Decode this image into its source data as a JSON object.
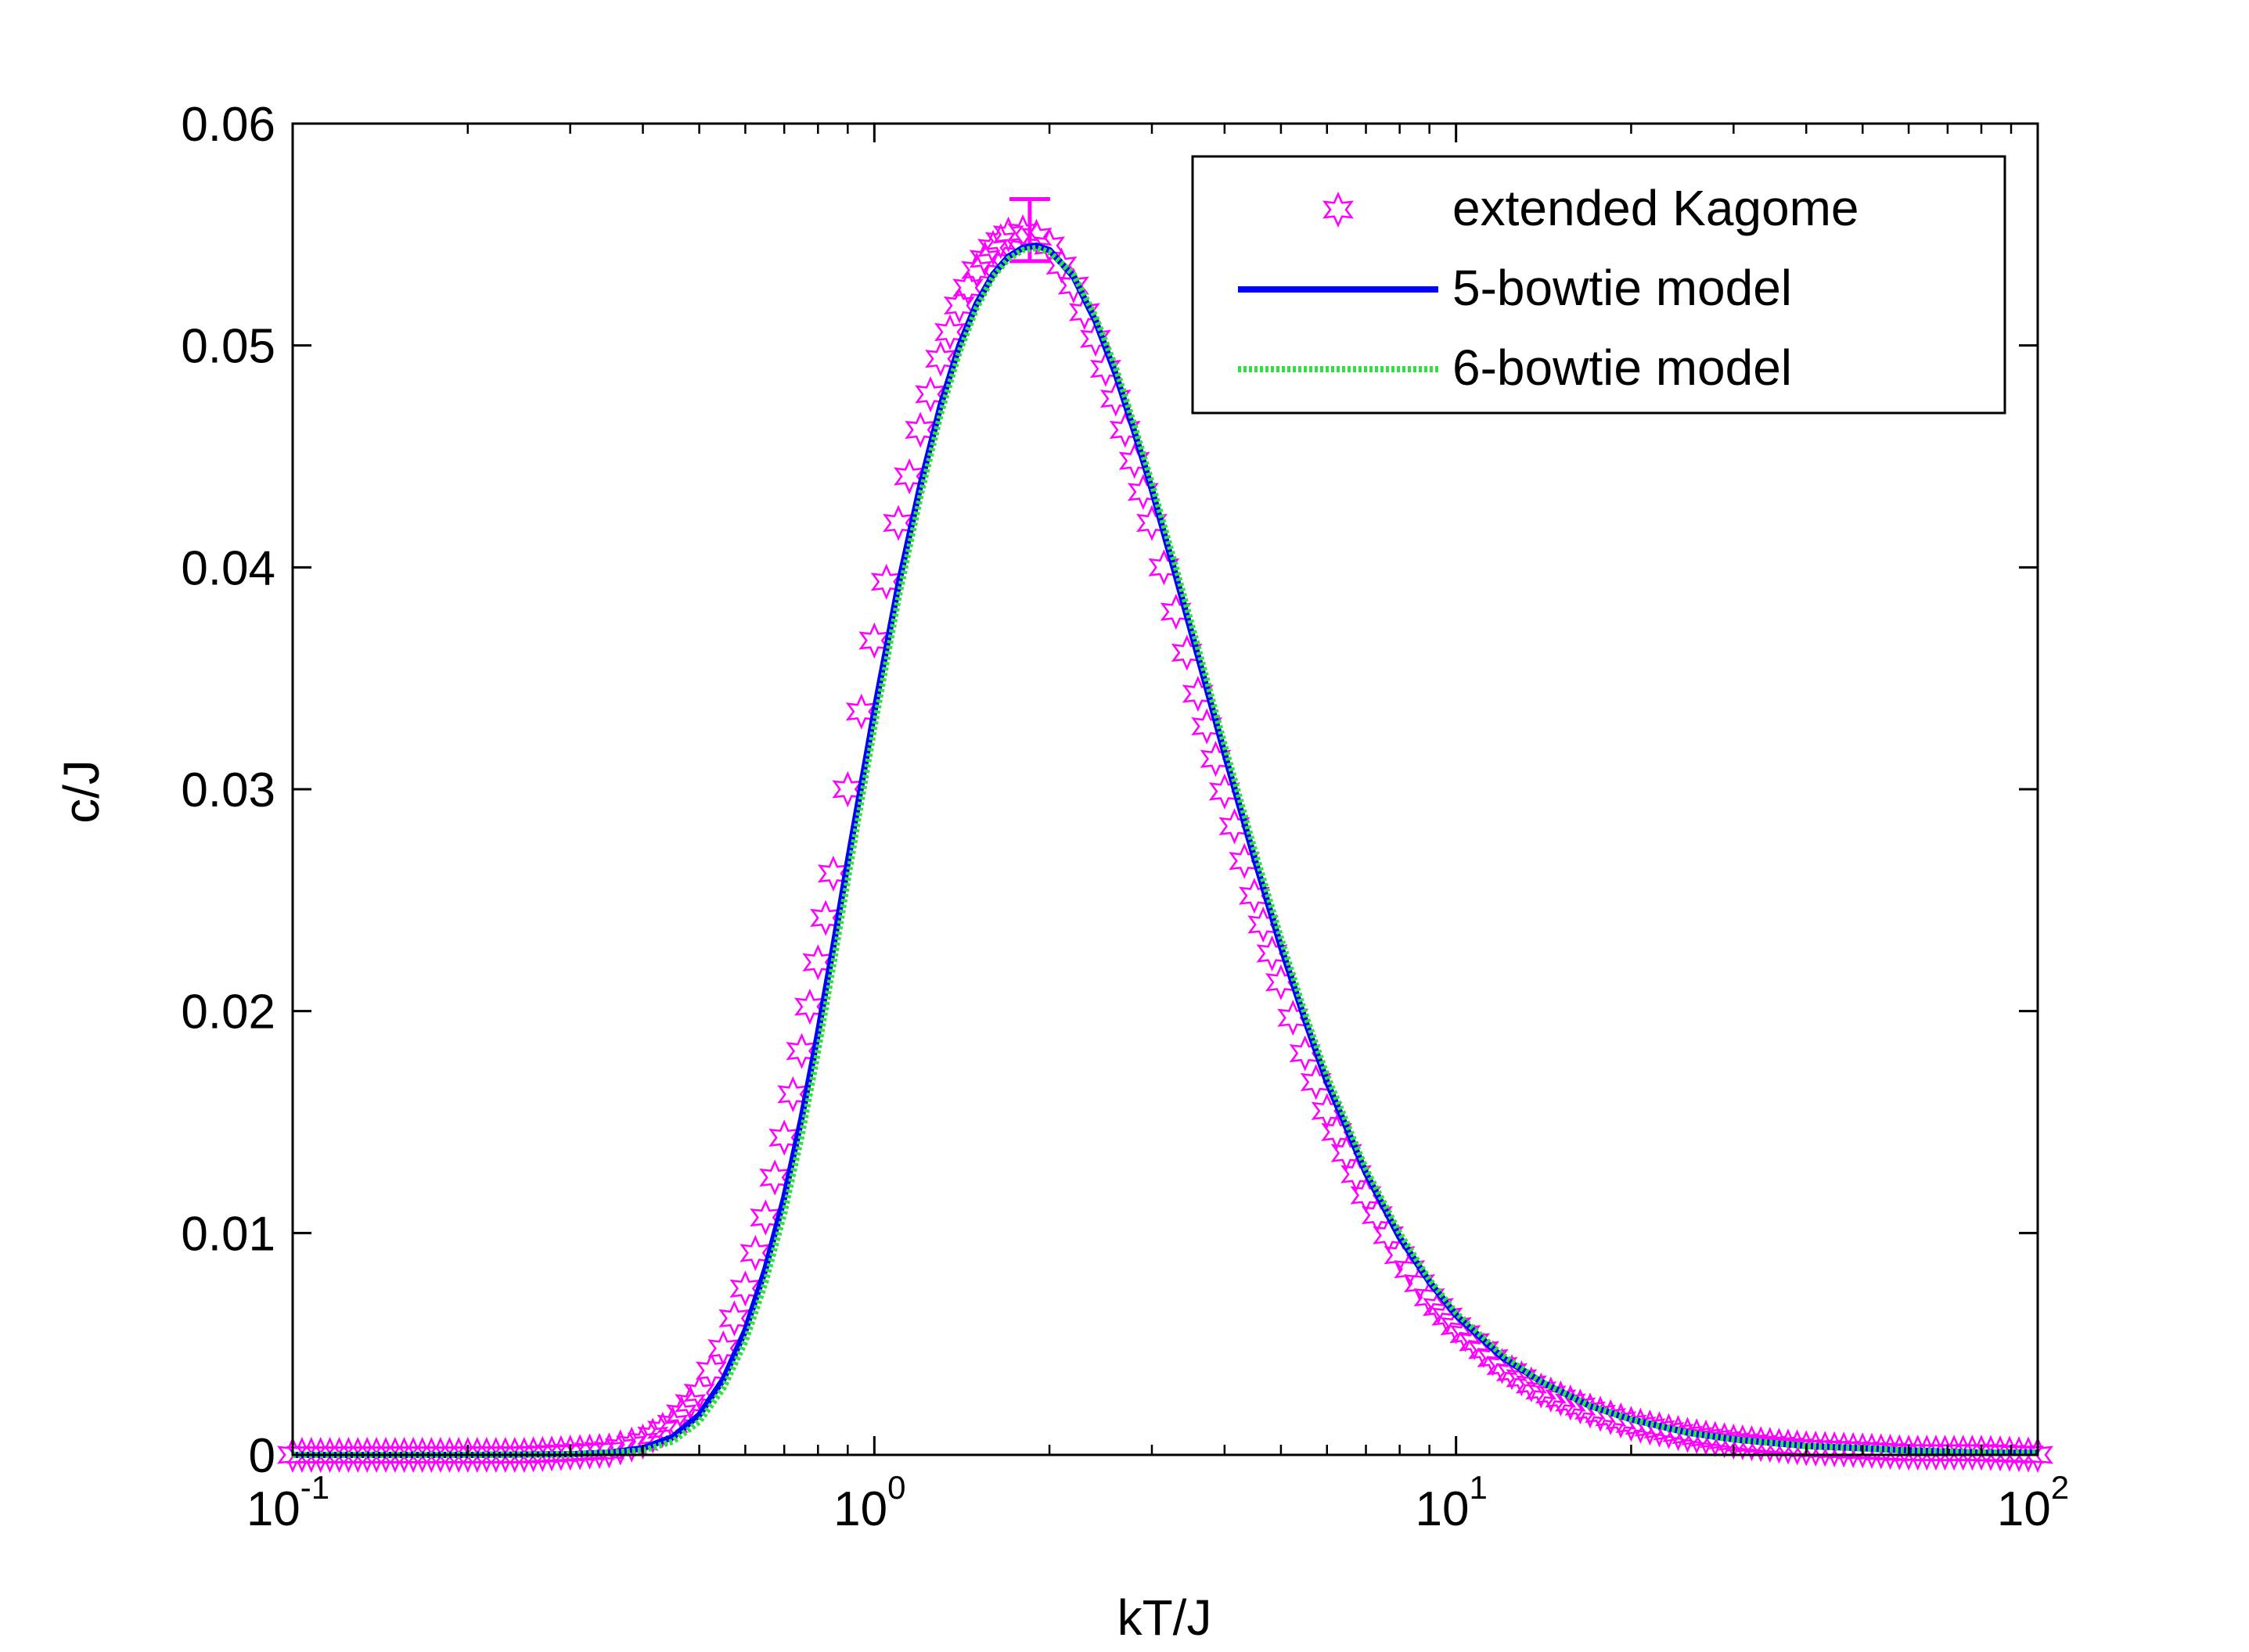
{
  "chart_data": {
    "type": "line",
    "title": "",
    "xlabel": "kT/J",
    "ylabel": "c/J",
    "xscale": "log",
    "xlim": [
      0.1,
      100
    ],
    "ylim": [
      0,
      0.06
    ],
    "x_ticks": [
      {
        "base": "10",
        "exp": "-1",
        "value": 0.1
      },
      {
        "base": "10",
        "exp": "0",
        "value": 1
      },
      {
        "base": "10",
        "exp": "1",
        "value": 10
      },
      {
        "base": "10",
        "exp": "2",
        "value": 100
      }
    ],
    "y_ticks": [
      {
        "label": "0",
        "value": 0
      },
      {
        "label": "0.01",
        "value": 0.01
      },
      {
        "label": "0.02",
        "value": 0.02
      },
      {
        "label": "0.03",
        "value": 0.03
      },
      {
        "label": "0.04",
        "value": 0.04
      },
      {
        "label": "0.05",
        "value": 0.05
      },
      {
        "label": "0.06",
        "value": 0.06
      }
    ],
    "grid": false,
    "legend_position": "top-right",
    "series": [
      {
        "name": "extended Kagome",
        "style": "markers",
        "marker": "hexagram",
        "color": "#ff00ff",
        "x": [
          0.1,
          0.15,
          0.2,
          0.25,
          0.3,
          0.35,
          0.4,
          0.45,
          0.5,
          0.55,
          0.6,
          0.65,
          0.7,
          0.75,
          0.8,
          0.85,
          0.9,
          0.95,
          1.0,
          1.1,
          1.2,
          1.3,
          1.4,
          1.5,
          1.6,
          1.7,
          1.8,
          1.9,
          2.0,
          2.2,
          2.4,
          2.6,
          2.8,
          3.0,
          3.3,
          3.6,
          4.0,
          4.5,
          5.0,
          5.5,
          6.0,
          7.0,
          8.0,
          9.0,
          10.0,
          12.0,
          14.0,
          17.0,
          20.0,
          25.0,
          30.0,
          40.0,
          50.0,
          60.0,
          80.0,
          100.0
        ],
        "y": [
          0.0,
          0.0,
          0.0,
          0.0,
          0.0001,
          0.0002,
          0.0006,
          0.0014,
          0.0028,
          0.0048,
          0.0075,
          0.0107,
          0.0143,
          0.0182,
          0.0222,
          0.0262,
          0.03,
          0.0335,
          0.0367,
          0.042,
          0.0462,
          0.0494,
          0.0518,
          0.0534,
          0.0544,
          0.055,
          0.0551,
          0.0549,
          0.0545,
          0.0527,
          0.0503,
          0.0476,
          0.0448,
          0.042,
          0.038,
          0.0343,
          0.0299,
          0.0252,
          0.0213,
          0.0181,
          0.0155,
          0.0117,
          0.009,
          0.0071,
          0.0058,
          0.004,
          0.0029,
          0.002,
          0.0014,
          0.0009,
          0.0006,
          0.0003,
          0.0002,
          0.0001,
          0.0001,
          0.0
        ],
        "error_bar": {
          "x": 1.85,
          "y": 0.055,
          "low": 0.0538,
          "high": 0.0566
        }
      },
      {
        "name": "5-bowtie model",
        "style": "solid",
        "color": "#0000ff",
        "x": [
          0.1,
          0.2,
          0.3,
          0.35,
          0.4,
          0.45,
          0.5,
          0.55,
          0.6,
          0.65,
          0.7,
          0.75,
          0.8,
          0.85,
          0.9,
          0.95,
          1.0,
          1.1,
          1.2,
          1.3,
          1.4,
          1.5,
          1.6,
          1.7,
          1.8,
          1.9,
          2.0,
          2.2,
          2.4,
          2.6,
          2.8,
          3.0,
          3.3,
          3.6,
          4.0,
          4.5,
          5.0,
          5.5,
          6.0,
          7.0,
          8.0,
          9.0,
          10.0,
          12.0,
          14.0,
          17.0,
          20.0,
          25.0,
          30.0,
          40.0,
          50.0,
          60.0,
          80.0,
          100.0
        ],
        "y": [
          0.0,
          0.0,
          3e-05,
          0.0001,
          0.0003,
          0.0008,
          0.0018,
          0.0034,
          0.0056,
          0.0084,
          0.0116,
          0.0152,
          0.019,
          0.0229,
          0.0267,
          0.0302,
          0.0335,
          0.0392,
          0.0437,
          0.0473,
          0.05,
          0.0519,
          0.0532,
          0.054,
          0.0544,
          0.0545,
          0.0543,
          0.0531,
          0.0511,
          0.0487,
          0.0461,
          0.0435,
          0.0396,
          0.036,
          0.0316,
          0.0269,
          0.0229,
          0.0196,
          0.0168,
          0.0127,
          0.0098,
          0.0078,
          0.0063,
          0.0044,
          0.0033,
          0.0022,
          0.0016,
          0.001,
          0.0007,
          0.0004,
          0.0003,
          0.0002,
          0.0001,
          0.0001
        ]
      },
      {
        "name": "6-bowtie model",
        "style": "dotted",
        "color": "#33dd44",
        "x": [
          0.1,
          0.2,
          0.3,
          0.35,
          0.4,
          0.45,
          0.5,
          0.55,
          0.6,
          0.65,
          0.7,
          0.75,
          0.8,
          0.85,
          0.9,
          0.95,
          1.0,
          1.1,
          1.2,
          1.3,
          1.4,
          1.5,
          1.6,
          1.7,
          1.8,
          1.9,
          2.0,
          2.2,
          2.4,
          2.6,
          2.8,
          3.0,
          3.3,
          3.6,
          4.0,
          4.5,
          5.0,
          5.5,
          6.0,
          7.0,
          8.0,
          9.0,
          10.0,
          12.0,
          14.0,
          17.0,
          20.0,
          25.0,
          30.0,
          40.0,
          50.0,
          60.0,
          80.0,
          100.0
        ],
        "y": [
          0.0,
          0.0,
          2e-05,
          0.0001,
          0.0002,
          0.0006,
          0.0015,
          0.003,
          0.0051,
          0.0078,
          0.0109,
          0.0144,
          0.0182,
          0.0221,
          0.0259,
          0.0295,
          0.0328,
          0.0386,
          0.0432,
          0.0469,
          0.0497,
          0.0517,
          0.0531,
          0.0539,
          0.0543,
          0.0544,
          0.0542,
          0.0532,
          0.0513,
          0.049,
          0.0464,
          0.0438,
          0.04,
          0.0364,
          0.032,
          0.0273,
          0.0233,
          0.0199,
          0.0171,
          0.0129,
          0.01,
          0.0079,
          0.0064,
          0.0045,
          0.0033,
          0.0022,
          0.0016,
          0.001,
          0.0007,
          0.0004,
          0.0003,
          0.0002,
          0.0001,
          0.0001
        ]
      }
    ]
  }
}
